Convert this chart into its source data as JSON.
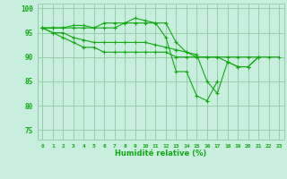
{
  "title": "",
  "xlabel": "Humidité relative (%)",
  "ylabel": "",
  "xlim": [
    -0.5,
    23.5
  ],
  "ylim": [
    73,
    101
  ],
  "yticks": [
    75,
    80,
    85,
    90,
    95,
    100
  ],
  "xticks": [
    0,
    1,
    2,
    3,
    4,
    5,
    6,
    7,
    8,
    9,
    10,
    11,
    12,
    13,
    14,
    15,
    16,
    17,
    18,
    19,
    20,
    21,
    22,
    23
  ],
  "background_color": "#c8eedd",
  "grid_color": "#99ccaa",
  "line_color": "#11aa11",
  "lines": [
    [
      96,
      96,
      96,
      96,
      96,
      96,
      97,
      97,
      97,
      98,
      97.5,
      97,
      94,
      87,
      87,
      82,
      81,
      85,
      null,
      null,
      null,
      null,
      null,
      null
    ],
    [
      96,
      96,
      96,
      96.5,
      96.5,
      96,
      96,
      96,
      97,
      97,
      97,
      97,
      97,
      93,
      91,
      90,
      90,
      90,
      89,
      88,
      88,
      90,
      null,
      null
    ],
    [
      96,
      95,
      95,
      94,
      93.5,
      93,
      93,
      93,
      93,
      93,
      93,
      92.5,
      92,
      91.5,
      91,
      90.5,
      85,
      82.5,
      89,
      88,
      88,
      90,
      null,
      null
    ],
    [
      96,
      95,
      94,
      93,
      92,
      92,
      91,
      91,
      91,
      91,
      91,
      91,
      91,
      90,
      90,
      90,
      90,
      90,
      90,
      90,
      90,
      90,
      90,
      90
    ]
  ]
}
